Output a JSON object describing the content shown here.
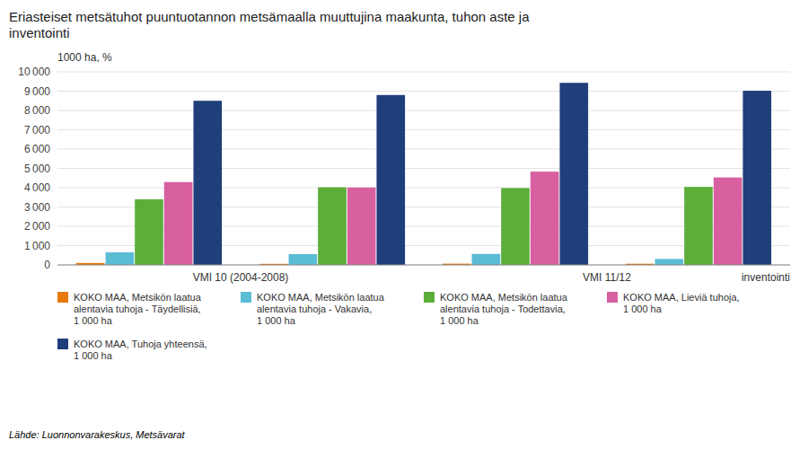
{
  "chart_data": {
    "type": "bar",
    "title": "Eriasteiset metsätuhot puuntuotannon metsämaalla muuttujina maakunta, tuhon aste ja\ninventointi",
    "ylabel": "1000 ha, %",
    "xlabel": "inventointi",
    "source": "Lähde: Luonnonvarakeskus, Metsävarat",
    "categories": [
      "VMI 10 (2004-2008)",
      null,
      "VMI 11/12",
      null
    ],
    "series": [
      {
        "name": "KOKO MAA, Metsikön laatua\nalentavia tuhoja - Täydellisiä,\n1 000 ha",
        "color": "#E8780A",
        "values": [
          100,
          55,
          65,
          60
        ]
      },
      {
        "name": "KOKO MAA, Metsikön laatua\nalentavia tuhoja - Vakavia,\n1 000 ha",
        "color": "#5BBCD6",
        "values": [
          650,
          560,
          570,
          310
        ]
      },
      {
        "name": "KOKO MAA, Metsikön laatua\nalentavia tuhoja - Todettavia,\n1 000 ha",
        "color": "#5DAD3A",
        "values": [
          3400,
          4020,
          3980,
          4040
        ]
      },
      {
        "name": "KOKO MAA, Lieviä tuhoja,\n1 000 ha",
        "color": "#D85FA0",
        "values": [
          4290,
          4010,
          4830,
          4530
        ]
      },
      {
        "name": "KOKO MAA, Tuhoja yhteensä,\n1 000 ha",
        "color": "#1F3E7A",
        "values": [
          8500,
          8800,
          9430,
          9020
        ]
      }
    ],
    "ylim": [
      0,
      10000
    ],
    "yticks": [
      0,
      {
        "value": 1000,
        "label": "1 000"
      },
      {
        "value": 2000,
        "label": "2 000"
      },
      {
        "value": 3000,
        "label": "3 000"
      },
      {
        "value": 4000,
        "label": "4 000"
      },
      {
        "value": 5000,
        "label": "5 000"
      },
      {
        "value": 6000,
        "label": "6 000"
      },
      {
        "value": 7000,
        "label": "7 000"
      },
      {
        "value": 8000,
        "label": "8 000"
      },
      {
        "value": 9000,
        "label": "9 000"
      },
      {
        "value": 10000,
        "label": "10 000"
      }
    ],
    "grid": true,
    "legend": "bottom"
  }
}
